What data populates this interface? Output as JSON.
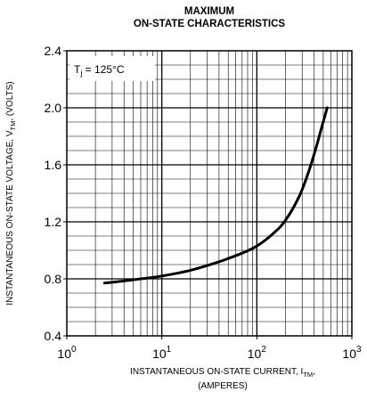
{
  "chart_data": {
    "type": "line",
    "title_line1": "MAXIMUM",
    "title_line2": "ON-STATE CHARACTERISTICS",
    "xscale": "log",
    "xlim": [
      1,
      1000
    ],
    "ylim": [
      0.4,
      2.4
    ],
    "x_ticks": [
      {
        "base": "10",
        "exp": "0"
      },
      {
        "base": "10",
        "exp": "1"
      },
      {
        "base": "10",
        "exp": "2"
      },
      {
        "base": "10",
        "exp": "3"
      }
    ],
    "y_ticks": [
      "0.4",
      "0.8",
      "1.2",
      "1.6",
      "2.0",
      "2.4"
    ],
    "grid": true,
    "xlabel_main": "INSTANTANEOUS ON-STATE CURRENT, I",
    "xlabel_sub": "TM",
    "xlabel_tail": ",",
    "xlabel_line2": "(AMPERES)",
    "ylabel_main": "INSTANTANEOUS ON-STATE VOLTAGE, V",
    "ylabel_sub": "TM",
    "ylabel_tail": ", (VOLTS)",
    "annotation": {
      "prefix": "T",
      "sub": "j",
      "suffix": " = 125°C"
    },
    "series": [
      {
        "x": [
          2.5,
          4,
          6,
          10,
          20,
          40,
          70,
          100,
          150,
          200,
          280,
          350,
          420,
          480,
          550
        ],
        "y": [
          0.77,
          0.785,
          0.8,
          0.82,
          0.86,
          0.92,
          0.98,
          1.03,
          1.12,
          1.21,
          1.38,
          1.55,
          1.72,
          1.86,
          2.0
        ]
      }
    ]
  }
}
